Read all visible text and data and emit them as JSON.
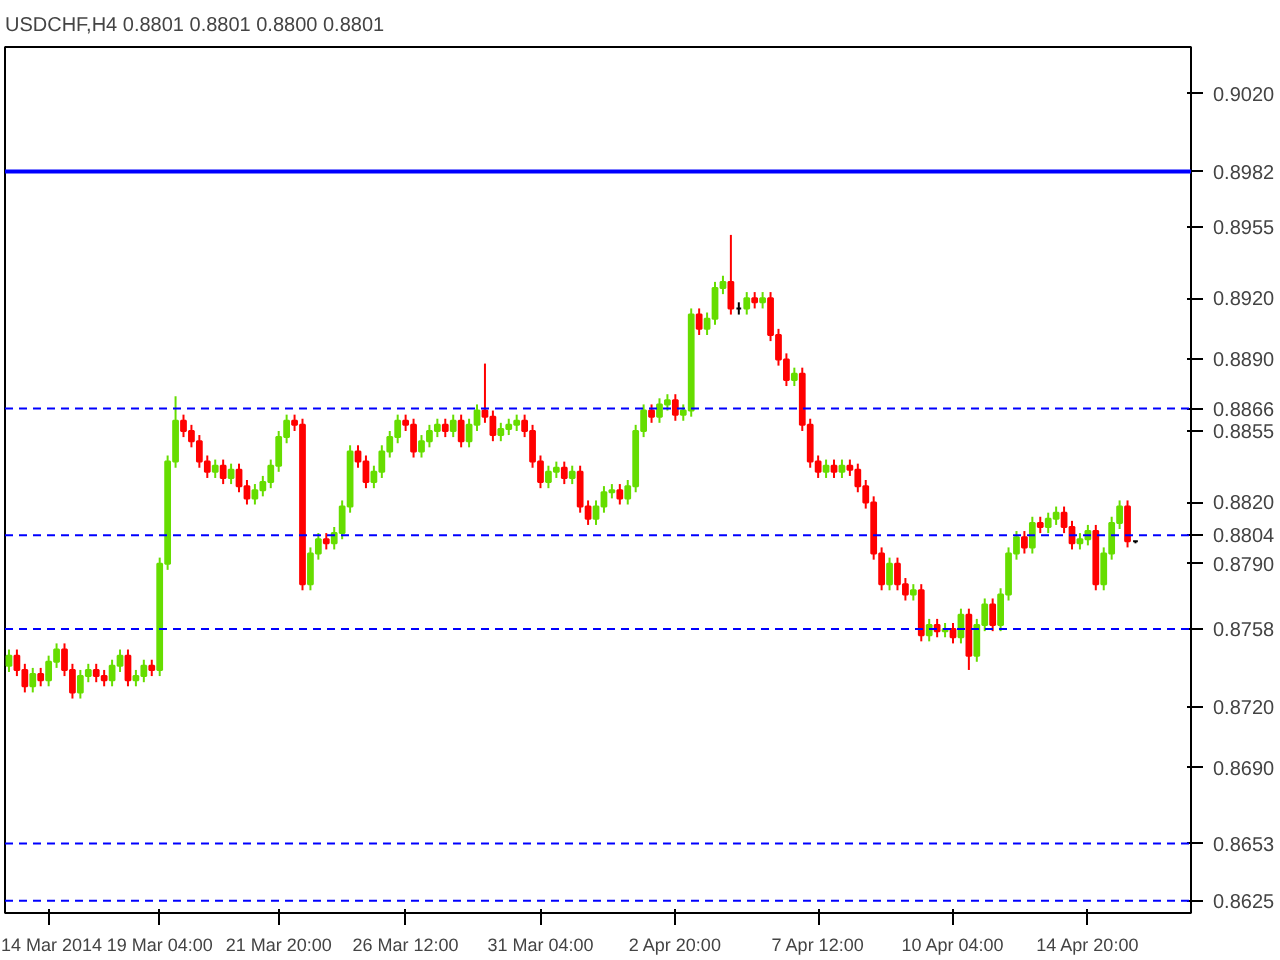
{
  "chart_data": {
    "type": "candlestick",
    "title": "USDCHF,H4 0.8801 0.8801 0.8800 0.8801",
    "categories": [
      null,
      null,
      null,
      null,
      null,
      "14 Mar 2014",
      null,
      null,
      null,
      null,
      null,
      null,
      null,
      null,
      null,
      null,
      null,
      null,
      null,
      "19 Mar 04:00",
      null,
      null,
      null,
      null,
      null,
      null,
      null,
      null,
      null,
      null,
      null,
      null,
      null,
      null,
      "21 Mar 20:00",
      null,
      null,
      null,
      null,
      null,
      null,
      null,
      null,
      null,
      null,
      null,
      null,
      null,
      null,
      null,
      "26 Mar 12:00",
      null,
      null,
      null,
      null,
      null,
      null,
      null,
      null,
      null,
      null,
      null,
      null,
      null,
      null,
      null,
      null,
      "31 Mar 04:00",
      null,
      null,
      null,
      null,
      null,
      null,
      null,
      null,
      null,
      null,
      null,
      null,
      null,
      null,
      null,
      null,
      "2 Apr 20:00",
      null,
      null,
      null,
      null,
      null,
      null,
      null,
      null,
      null,
      null,
      null,
      null,
      null,
      null,
      null,
      null,
      null,
      "7 Apr 12:00",
      null,
      null,
      null,
      null,
      null,
      null,
      null,
      null,
      null,
      null,
      null,
      null,
      null,
      null,
      null,
      null,
      "10 Apr 04:00",
      null,
      null,
      null,
      null,
      null,
      null,
      null,
      null,
      null,
      null,
      null,
      null,
      null,
      null,
      null,
      null,
      "14 Apr 20:00",
      null,
      null,
      null,
      null,
      null,
      null
    ],
    "ohlc": [
      [
        0.874,
        0.8748,
        0.8737,
        0.8745
      ],
      [
        0.8745,
        0.8748,
        0.8735,
        0.8738
      ],
      [
        0.8738,
        0.8741,
        0.8727,
        0.873
      ],
      [
        0.873,
        0.8739,
        0.8727,
        0.8736
      ],
      [
        0.8736,
        0.8739,
        0.873,
        0.8733
      ],
      [
        0.8733,
        0.8745,
        0.873,
        0.8742
      ],
      [
        0.8742,
        0.8751,
        0.8739,
        0.8748
      ],
      [
        0.8748,
        0.8751,
        0.8735,
        0.8738
      ],
      [
        0.8738,
        0.8741,
        0.8724,
        0.8727
      ],
      [
        0.8727,
        0.8738,
        0.8724,
        0.8735
      ],
      [
        0.8735,
        0.8741,
        0.8732,
        0.8738
      ],
      [
        0.8738,
        0.8741,
        0.8732,
        0.8735
      ],
      [
        0.8735,
        0.8738,
        0.873,
        0.8733
      ],
      [
        0.8733,
        0.8743,
        0.873,
        0.874
      ],
      [
        0.874,
        0.8748,
        0.8737,
        0.8745
      ],
      [
        0.8745,
        0.8748,
        0.873,
        0.8733
      ],
      [
        0.8733,
        0.8738,
        0.873,
        0.8735
      ],
      [
        0.8735,
        0.8743,
        0.8732,
        0.874
      ],
      [
        0.874,
        0.8743,
        0.8735,
        0.8738
      ],
      [
        0.8738,
        0.8793,
        0.8735,
        0.879
      ],
      [
        0.879,
        0.8843,
        0.8787,
        0.884
      ],
      [
        0.884,
        0.8872,
        0.8837,
        0.886
      ],
      [
        0.886,
        0.8863,
        0.8852,
        0.8855
      ],
      [
        0.8855,
        0.8858,
        0.8847,
        0.885
      ],
      [
        0.885,
        0.8853,
        0.8837,
        0.884
      ],
      [
        0.884,
        0.8843,
        0.8832,
        0.8835
      ],
      [
        0.8835,
        0.8841,
        0.8832,
        0.8838
      ],
      [
        0.8838,
        0.8841,
        0.8829,
        0.8832
      ],
      [
        0.8832,
        0.8839,
        0.8829,
        0.8836
      ],
      [
        0.8836,
        0.8839,
        0.8825,
        0.8828
      ],
      [
        0.8828,
        0.8831,
        0.8819,
        0.8822
      ],
      [
        0.8822,
        0.8829,
        0.8819,
        0.8826
      ],
      [
        0.8826,
        0.8833,
        0.8823,
        0.883
      ],
      [
        0.883,
        0.8841,
        0.8827,
        0.8838
      ],
      [
        0.8838,
        0.8855,
        0.8835,
        0.8852
      ],
      [
        0.8852,
        0.8863,
        0.8849,
        0.886
      ],
      [
        0.886,
        0.8863,
        0.8855,
        0.8858
      ],
      [
        0.8858,
        0.8861,
        0.8777,
        0.878
      ],
      [
        0.878,
        0.8798,
        0.8777,
        0.8795
      ],
      [
        0.8795,
        0.8805,
        0.8792,
        0.8802
      ],
      [
        0.8802,
        0.8805,
        0.8797,
        0.88
      ],
      [
        0.88,
        0.8808,
        0.8797,
        0.8805
      ],
      [
        0.8805,
        0.8821,
        0.8802,
        0.8818
      ],
      [
        0.8818,
        0.8848,
        0.8815,
        0.8845
      ],
      [
        0.8845,
        0.8848,
        0.8837,
        0.884
      ],
      [
        0.884,
        0.8843,
        0.8827,
        0.883
      ],
      [
        0.883,
        0.8838,
        0.8827,
        0.8835
      ],
      [
        0.8835,
        0.8848,
        0.8832,
        0.8845
      ],
      [
        0.8845,
        0.8855,
        0.8842,
        0.8852
      ],
      [
        0.8852,
        0.8863,
        0.8849,
        0.886
      ],
      [
        0.886,
        0.8863,
        0.8855,
        0.8858
      ],
      [
        0.8858,
        0.8861,
        0.8842,
        0.8845
      ],
      [
        0.8845,
        0.8853,
        0.8842,
        0.885
      ],
      [
        0.885,
        0.8858,
        0.8847,
        0.8855
      ],
      [
        0.8855,
        0.8861,
        0.8852,
        0.8858
      ],
      [
        0.8858,
        0.8861,
        0.8852,
        0.8855
      ],
      [
        0.8855,
        0.8863,
        0.8852,
        0.886
      ],
      [
        0.886,
        0.8863,
        0.8847,
        0.885
      ],
      [
        0.885,
        0.8861,
        0.8847,
        0.8858
      ],
      [
        0.8858,
        0.8868,
        0.8855,
        0.8865
      ],
      [
        0.8865,
        0.8888,
        0.8859,
        0.8862
      ],
      [
        0.8862,
        0.8865,
        0.885,
        0.8853
      ],
      [
        0.8853,
        0.8859,
        0.885,
        0.8856
      ],
      [
        0.8856,
        0.8861,
        0.8853,
        0.8858
      ],
      [
        0.8858,
        0.8863,
        0.8855,
        0.886
      ],
      [
        0.886,
        0.8863,
        0.8852,
        0.8855
      ],
      [
        0.8855,
        0.8858,
        0.8837,
        0.884
      ],
      [
        0.884,
        0.8843,
        0.8827,
        0.883
      ],
      [
        0.883,
        0.8838,
        0.8827,
        0.8835
      ],
      [
        0.8835,
        0.884,
        0.8832,
        0.8837
      ],
      [
        0.8837,
        0.884,
        0.8829,
        0.8832
      ],
      [
        0.8832,
        0.8838,
        0.8829,
        0.8835
      ],
      [
        0.8835,
        0.8838,
        0.8815,
        0.8818
      ],
      [
        0.8818,
        0.8821,
        0.8809,
        0.8812
      ],
      [
        0.8812,
        0.8821,
        0.8809,
        0.8818
      ],
      [
        0.8818,
        0.8828,
        0.8815,
        0.8825
      ],
      [
        0.8825,
        0.8829,
        0.8822,
        0.8826
      ],
      [
        0.8826,
        0.8829,
        0.8819,
        0.8822
      ],
      [
        0.8822,
        0.8831,
        0.8819,
        0.8828
      ],
      [
        0.8828,
        0.8858,
        0.8825,
        0.8855
      ],
      [
        0.8855,
        0.8868,
        0.8852,
        0.8865
      ],
      [
        0.8865,
        0.8868,
        0.8859,
        0.8862
      ],
      [
        0.8862,
        0.8871,
        0.8859,
        0.8868
      ],
      [
        0.8868,
        0.8873,
        0.8865,
        0.887
      ],
      [
        0.887,
        0.8873,
        0.886,
        0.8863
      ],
      [
        0.8863,
        0.8868,
        0.886,
        0.8865
      ],
      [
        0.8865,
        0.8915,
        0.8862,
        0.8912
      ],
      [
        0.8912,
        0.8915,
        0.8902,
        0.8905
      ],
      [
        0.8905,
        0.8913,
        0.8902,
        0.891
      ],
      [
        0.891,
        0.8928,
        0.8907,
        0.8925
      ],
      [
        0.8925,
        0.8931,
        0.8922,
        0.8928
      ],
      [
        0.8928,
        0.8951,
        0.8912,
        0.8915
      ],
      [
        0.8915,
        0.8918,
        0.8912,
        0.8915
      ],
      [
        0.8915,
        0.8923,
        0.8912,
        0.892
      ],
      [
        0.892,
        0.8923,
        0.8915,
        0.8918
      ],
      [
        0.8918,
        0.8923,
        0.8915,
        0.892
      ],
      [
        0.892,
        0.8923,
        0.8899,
        0.8902
      ],
      [
        0.8902,
        0.8905,
        0.8887,
        0.889
      ],
      [
        0.889,
        0.8893,
        0.8877,
        0.888
      ],
      [
        0.888,
        0.8886,
        0.8877,
        0.8883
      ],
      [
        0.8883,
        0.8886,
        0.8855,
        0.8858
      ],
      [
        0.8858,
        0.8861,
        0.8837,
        0.884
      ],
      [
        0.884,
        0.8843,
        0.8832,
        0.8835
      ],
      [
        0.8835,
        0.8841,
        0.8832,
        0.8838
      ],
      [
        0.8838,
        0.8841,
        0.8832,
        0.8835
      ],
      [
        0.8835,
        0.8841,
        0.8832,
        0.8838
      ],
      [
        0.8838,
        0.8841,
        0.8833,
        0.8836
      ],
      [
        0.8836,
        0.8839,
        0.8825,
        0.8828
      ],
      [
        0.8828,
        0.8831,
        0.8817,
        0.882
      ],
      [
        0.882,
        0.8823,
        0.8792,
        0.8795
      ],
      [
        0.8795,
        0.8798,
        0.8777,
        0.878
      ],
      [
        0.878,
        0.8793,
        0.8777,
        0.879
      ],
      [
        0.879,
        0.8793,
        0.8777,
        0.878
      ],
      [
        0.878,
        0.8783,
        0.8772,
        0.8775
      ],
      [
        0.8775,
        0.878,
        0.8772,
        0.8777
      ],
      [
        0.8777,
        0.878,
        0.8752,
        0.8755
      ],
      [
        0.8755,
        0.8763,
        0.8752,
        0.876
      ],
      [
        0.876,
        0.8763,
        0.8754,
        0.8757
      ],
      [
        0.8757,
        0.8761,
        0.8754,
        0.8758
      ],
      [
        0.8758,
        0.8761,
        0.8751,
        0.8754
      ],
      [
        0.8754,
        0.8768,
        0.8751,
        0.8765
      ],
      [
        0.8765,
        0.8768,
        0.8738,
        0.8745
      ],
      [
        0.8745,
        0.8763,
        0.8742,
        0.876
      ],
      [
        0.876,
        0.8773,
        0.8757,
        0.877
      ],
      [
        0.877,
        0.8773,
        0.8757,
        0.876
      ],
      [
        0.876,
        0.8778,
        0.8757,
        0.8775
      ],
      [
        0.8775,
        0.8798,
        0.8772,
        0.8795
      ],
      [
        0.8795,
        0.8806,
        0.8792,
        0.8803
      ],
      [
        0.8803,
        0.8806,
        0.8795,
        0.8798
      ],
      [
        0.8798,
        0.8813,
        0.8795,
        0.881
      ],
      [
        0.881,
        0.8813,
        0.8805,
        0.8808
      ],
      [
        0.8808,
        0.8815,
        0.8805,
        0.8812
      ],
      [
        0.8812,
        0.8818,
        0.8809,
        0.8815
      ],
      [
        0.8815,
        0.8818,
        0.8805,
        0.8808
      ],
      [
        0.8808,
        0.8811,
        0.8797,
        0.88
      ],
      [
        0.88,
        0.8805,
        0.8797,
        0.8802
      ],
      [
        0.8802,
        0.8809,
        0.8799,
        0.8806
      ],
      [
        0.8806,
        0.8809,
        0.8777,
        0.878
      ],
      [
        0.878,
        0.8798,
        0.8777,
        0.8795
      ],
      [
        0.8795,
        0.8813,
        0.8792,
        0.881
      ],
      [
        0.881,
        0.8821,
        0.8807,
        0.8818
      ],
      [
        0.8818,
        0.8821,
        0.8798,
        0.8801
      ],
      [
        0.8801,
        0.8801,
        0.88,
        0.8801
      ]
    ],
    "colors": [
      "#66dd00",
      "#ff0000",
      "#ff0000",
      "#66dd00",
      "#ff0000",
      "#66dd00",
      "#66dd00",
      "#ff0000",
      "#ff0000",
      "#66dd00",
      "#66dd00",
      "#ff0000",
      "#ff0000",
      "#66dd00",
      "#66dd00",
      "#ff0000",
      "#66dd00",
      "#66dd00",
      "#ff0000",
      "#66dd00",
      "#66dd00",
      "#66dd00",
      "#ff0000",
      "#ff0000",
      "#ff0000",
      "#ff0000",
      "#66dd00",
      "#ff0000",
      "#66dd00",
      "#ff0000",
      "#ff0000",
      "#66dd00",
      "#66dd00",
      "#66dd00",
      "#66dd00",
      "#66dd00",
      "#ff0000",
      "#ff0000",
      "#66dd00",
      "#66dd00",
      "#ff0000",
      "#66dd00",
      "#66dd00",
      "#66dd00",
      "#ff0000",
      "#ff0000",
      "#66dd00",
      "#66dd00",
      "#66dd00",
      "#66dd00",
      "#ff0000",
      "#ff0000",
      "#66dd00",
      "#66dd00",
      "#66dd00",
      "#ff0000",
      "#66dd00",
      "#ff0000",
      "#66dd00",
      "#66dd00",
      "#ff0000",
      "#ff0000",
      "#66dd00",
      "#66dd00",
      "#66dd00",
      "#ff0000",
      "#ff0000",
      "#ff0000",
      "#66dd00",
      "#66dd00",
      "#ff0000",
      "#66dd00",
      "#ff0000",
      "#ff0000",
      "#66dd00",
      "#66dd00",
      "#66dd00",
      "#ff0000",
      "#66dd00",
      "#66dd00",
      "#66dd00",
      "#ff0000",
      "#66dd00",
      "#66dd00",
      "#ff0000",
      "#66dd00",
      "#66dd00",
      "#ff0000",
      "#66dd00",
      "#66dd00",
      "#66dd00",
      "#ff0000",
      "#000000",
      "#66dd00",
      "#ff0000",
      "#66dd00",
      "#ff0000",
      "#ff0000",
      "#ff0000",
      "#66dd00",
      "#ff0000",
      "#ff0000",
      "#ff0000",
      "#66dd00",
      "#ff0000",
      "#66dd00",
      "#ff0000",
      "#ff0000",
      "#ff0000",
      "#ff0000",
      "#ff0000",
      "#66dd00",
      "#ff0000",
      "#ff0000",
      "#66dd00",
      "#ff0000",
      "#66dd00",
      "#ff0000",
      "#66dd00",
      "#ff0000",
      "#66dd00",
      "#ff0000",
      "#66dd00",
      "#66dd00",
      "#ff0000",
      "#66dd00",
      "#66dd00",
      "#66dd00",
      "#ff0000",
      "#66dd00",
      "#ff0000",
      "#66dd00",
      "#66dd00",
      "#ff0000",
      "#ff0000",
      "#66dd00",
      "#66dd00",
      "#ff0000",
      "#66dd00",
      "#66dd00",
      "#66dd00",
      "#ff0000",
      "#000000"
    ],
    "ylim": [
      0.8619,
      0.9043
    ],
    "yticks": [
      {
        "value": 0.902,
        "label": "0.9020"
      },
      {
        "value": 0.8955,
        "label": "0.8955"
      },
      {
        "value": 0.892,
        "label": "0.8920"
      },
      {
        "value": 0.889,
        "label": "0.8890"
      },
      {
        "value": 0.8855,
        "label": "0.8855"
      },
      {
        "value": 0.882,
        "label": "0.8820"
      },
      {
        "value": 0.879,
        "label": "0.8790"
      },
      {
        "value": 0.872,
        "label": "0.8720"
      },
      {
        "value": 0.869,
        "label": "0.8690"
      }
    ],
    "ref_lines": [
      {
        "axis": "y",
        "value": 0.8982,
        "label": "0.8982",
        "color": "#0000ff",
        "line_style": "solid"
      },
      {
        "axis": "y",
        "value": 0.8866,
        "label": "0.8866",
        "color": "#0000ff",
        "line_style": "dashed"
      },
      {
        "axis": "y",
        "value": 0.8804,
        "label": "0.8804",
        "color": "#0000ff",
        "line_style": "dashed"
      },
      {
        "axis": "y",
        "value": 0.8758,
        "label": "0.8758",
        "color": "#0000ff",
        "line_style": "dashed"
      },
      {
        "axis": "y",
        "value": 0.8653,
        "label": "0.8653",
        "color": "#0000ff",
        "line_style": "dashed"
      },
      {
        "axis": "y",
        "value": 0.8625,
        "label": "0.8625",
        "color": "#0000ff",
        "line_style": "dashed"
      }
    ],
    "grid": false
  }
}
